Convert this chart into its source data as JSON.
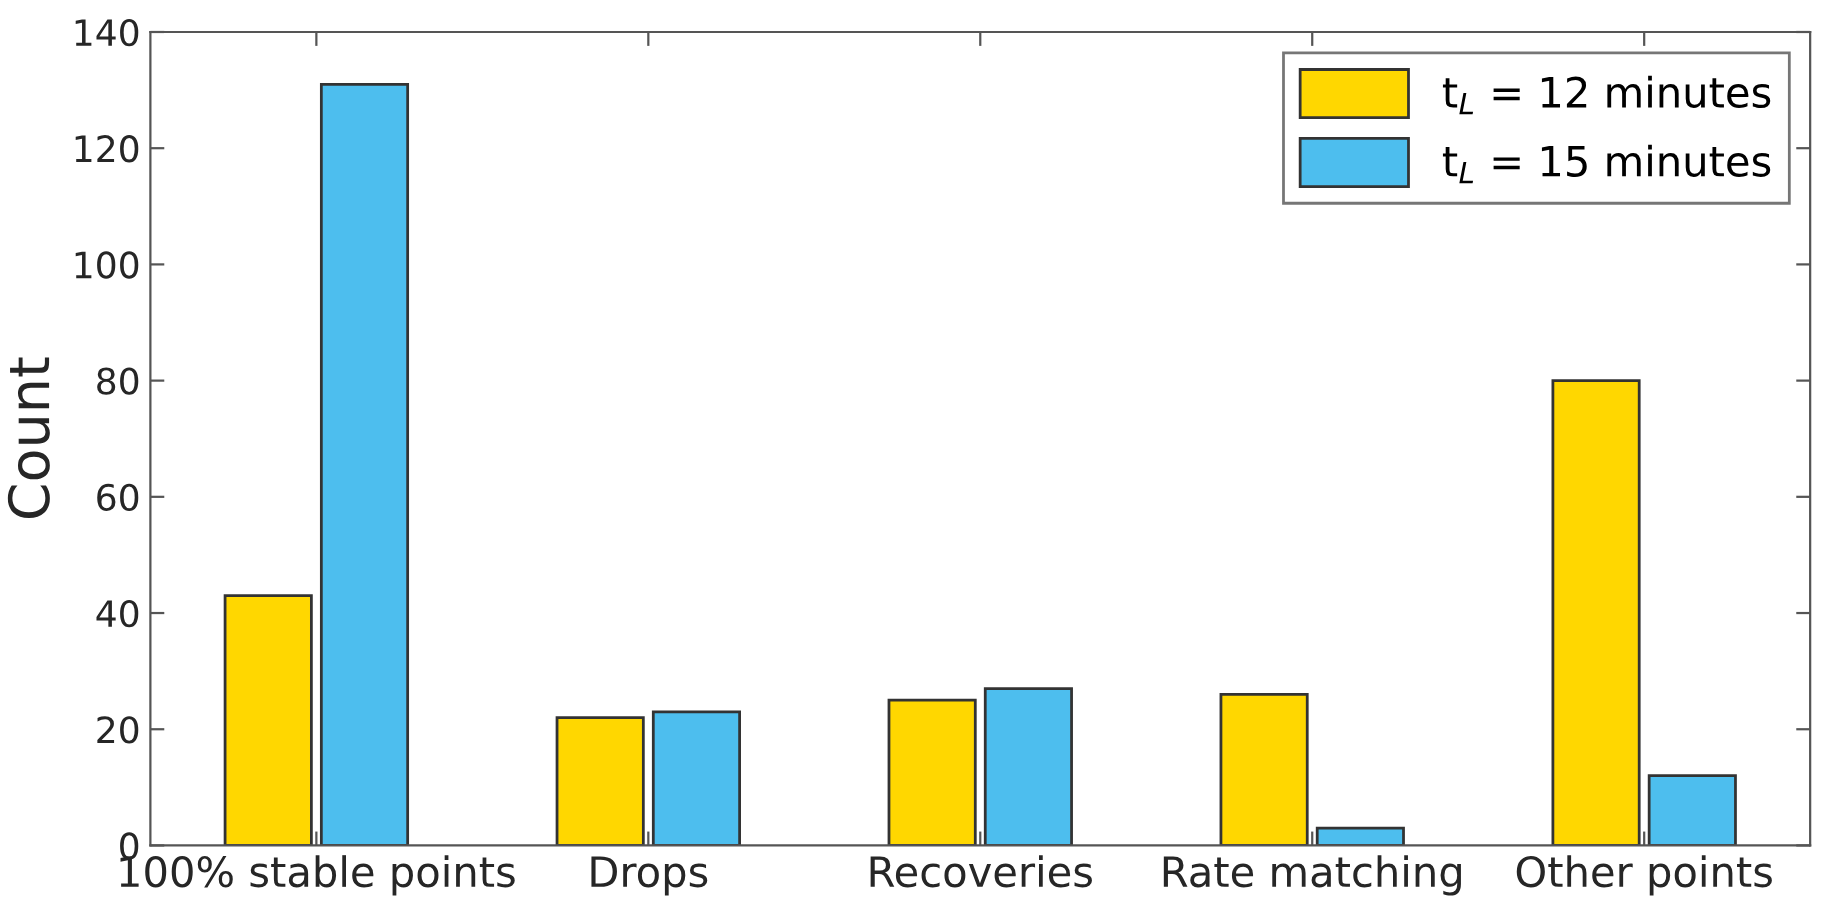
{
  "chart_data": {
    "type": "bar",
    "ylabel": "Count",
    "categories": [
      "100% stable points",
      "Drops",
      "Recoveries",
      "Rate matching",
      "Other points"
    ],
    "series": [
      {
        "name": "t$_{L}$ = 12 minutes",
        "color": "#ffd700",
        "values": [
          43,
          22,
          25,
          26,
          80
        ]
      },
      {
        "name": "t$_{L}$ = 15 minutes",
        "color": "#4dbeee",
        "values": [
          131,
          23,
          27,
          3,
          12
        ]
      }
    ],
    "ylim": [
      0,
      140
    ],
    "yticks": [
      0,
      20,
      40,
      60,
      80,
      100,
      120,
      140
    ],
    "grid": false,
    "legend": "top right"
  }
}
